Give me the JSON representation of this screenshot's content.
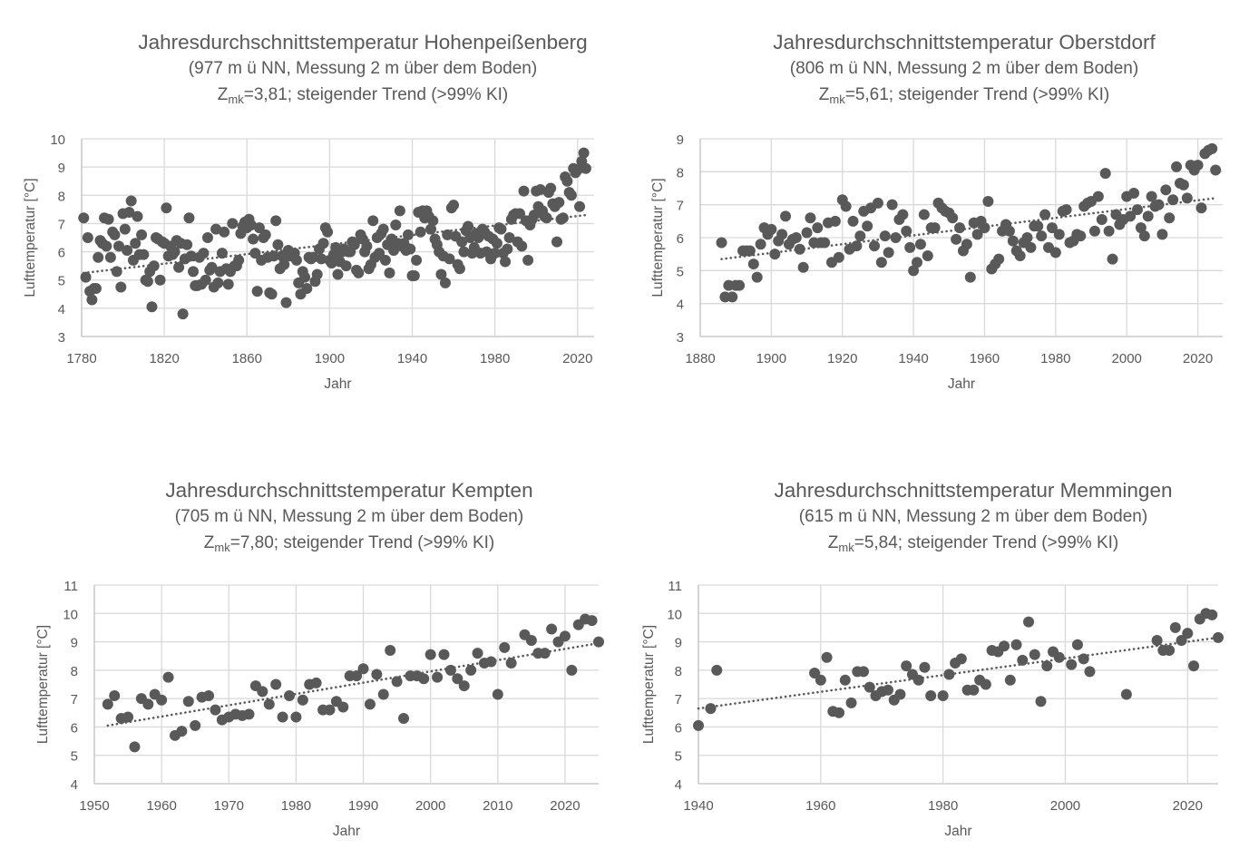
{
  "colors": {
    "marker": "#595959",
    "grid": "#d9d9d9",
    "axis": "#bfbfbf",
    "text": "#595959"
  },
  "chart_data": [
    {
      "type": "scatter",
      "title": "Jahresdurchschnittstemperatur Hohenpeißenberg",
      "subtitle": "(977 m ü NN, Messung 2 m über dem Boden)",
      "z_symbol": "Z",
      "z_sub": "mk",
      "z_rest": "=3,81; steigender Trend (>99% KI)",
      "xlabel": "Jahr",
      "ylabel": "Lufttemperatur [°C]",
      "xlim": [
        1780,
        2028
      ],
      "ylim": [
        3,
        10
      ],
      "xticks": [
        1780,
        1820,
        1860,
        1900,
        1940,
        1980,
        2020
      ],
      "yticks": [
        3,
        4,
        5,
        6,
        7,
        8,
        9,
        10
      ],
      "grid": true,
      "trend": {
        "type": "linear",
        "start": [
          1781,
          5.25
        ],
        "end": [
          2024,
          7.3
        ]
      },
      "year_start": 1781,
      "y": [
        7.2,
        5.1,
        6.5,
        4.6,
        4.3,
        4.7,
        4.7,
        5.8,
        6.4,
        6.3,
        7.2,
        6.2,
        7.15,
        5.8,
        6.7,
        6.6,
        5.3,
        6.2,
        4.75,
        7.35,
        6.8,
        6.05,
        7.4,
        7.8,
        5.7,
        6.3,
        7.25,
        5.9,
        6.6,
        5.9,
        5.0,
        4.95,
        5.3,
        4.05,
        5.5,
        6.5,
        6.45,
        5.0,
        6.35,
        6.3,
        7.55,
        5.85,
        6.2,
        5.9,
        6.0,
        6.4,
        5.45,
        6.3,
        3.8,
        5.75,
        6.25,
        7.2,
        5.85,
        5.3,
        4.8,
        4.8,
        5.8,
        4.85,
        5.95,
        5.0,
        6.5,
        5.35,
        5.45,
        4.75,
        6.8,
        4.9,
        5.3,
        5.95,
        6.7,
        5.4,
        4.85,
        5.3,
        7.0,
        5.5,
        5.5,
        5.7,
        6.65,
        6.9,
        7.05,
        6.85,
        7.15,
        6.95,
        6.45,
        5.95,
        4.6,
        6.85,
        5.7,
        6.5,
        6.6,
        5.8,
        4.55,
        4.5,
        5.85,
        7.1,
        6.25,
        5.4,
        5.85,
        5.55,
        4.2,
        6.05,
        5.85,
        5.9,
        5.95,
        5.7,
        4.9,
        4.5,
        5.3,
        5.1,
        4.7,
        5.8,
        5.75,
        5.8,
        4.95,
        5.2,
        6.1,
        5.75,
        6.3,
        6.85,
        6.7,
        5.7,
        5.6,
        5.9,
        6.15,
        5.2,
        5.65,
        6.0,
        6.1,
        5.5,
        6.0,
        6.0,
        6.35,
        6.25,
        5.35,
        5.25,
        6.6,
        6.45,
        6.0,
        6.2,
        5.4,
        5.55,
        7.1,
        5.8,
        6.5,
        5.95,
        6.65,
        6.8,
        5.7,
        6.25,
        5.25,
        6.45,
        6.05,
        6.95,
        6.3,
        7.45,
        6.2,
        6.3,
        6.05,
        6.6,
        6.1,
        5.15,
        5.15,
        5.7,
        7.4,
        6.7,
        7.45,
        7.2,
        7.45,
        7.25,
        6.8,
        7.1,
        6.45,
        6.25,
        6.0,
        5.2,
        5.85,
        4.9,
        6.6,
        5.75,
        7.55,
        7.65,
        6.55,
        5.55,
        5.4,
        6.35,
        6.0,
        6.75,
        6.9,
        6.5,
        5.95,
        6.15,
        6.65,
        6.5,
        5.95,
        6.8,
        6.7,
        6.0,
        6.55,
        5.75,
        6.45,
        5.95,
        6.3,
        6.85,
        6.8,
        5.95,
        5.65,
        6.1,
        6.5,
        7.15,
        7.3,
        7.35,
        6.35,
        7.35,
        6.2,
        8.15,
        7.1,
        5.7,
        6.95,
        7.15,
        7.3,
        8.15,
        7.6,
        8.2,
        7.45,
        7.25,
        7.2,
        8.1,
        8.25,
        7.7,
        7.6,
        6.35,
        7.75,
        7.15,
        7.2,
        8.65,
        8.5,
        8.1,
        8.0,
        8.95,
        8.8,
        8.9,
        7.6,
        9.2,
        9.5,
        8.95
      ]
    },
    {
      "type": "scatter",
      "title": "Jahresdurchschnittstemperatur Oberstdorf",
      "subtitle": "(806 m ü NN, Messung 2 m über dem Boden)",
      "z_symbol": "Z",
      "z_sub": "mk",
      "z_rest": "=5,61; steigender Trend (>99% KI)",
      "xlabel": "Jahr",
      "ylabel": "Lufttemperatur [°C]",
      "xlim": [
        1880,
        2027
      ],
      "ylim": [
        3,
        9
      ],
      "xticks": [
        1880,
        1900,
        1920,
        1940,
        1960,
        1980,
        2000,
        2020
      ],
      "yticks": [
        3,
        4,
        5,
        6,
        7,
        8,
        9
      ],
      "grid": true,
      "trend": {
        "type": "linear",
        "start": [
          1886,
          5.35
        ],
        "end": [
          2025,
          7.2
        ]
      },
      "year_start": 1886,
      "y": [
        5.85,
        4.2,
        4.55,
        4.2,
        4.55,
        4.55,
        5.6,
        5.6,
        5.6,
        5.2,
        4.8,
        5.8,
        6.3,
        6.1,
        6.25,
        5.5,
        5.9,
        6.1,
        6.65,
        5.8,
        5.95,
        6.0,
        5.65,
        5.1,
        6.15,
        6.6,
        5.85,
        6.3,
        5.85,
        5.85,
        6.45,
        5.25,
        6.5,
        5.4,
        7.15,
        6.95,
        5.65,
        6.5,
        5.75,
        6.05,
        6.8,
        6.35,
        6.9,
        5.75,
        7.05,
        5.25,
        6.05,
        5.55,
        7.0,
        6.0,
        6.55,
        6.7,
        6.2,
        5.7,
        5.0,
        5.25,
        5.8,
        6.7,
        5.45,
        6.3,
        6.3,
        7.05,
        6.9,
        6.8,
        6.75,
        6.6,
        5.95,
        6.3,
        5.6,
        5.8,
        4.8,
        6.45,
        6.1,
        6.5,
        6.3,
        7.1,
        5.05,
        5.2,
        5.35,
        6.2,
        6.4,
        6.2,
        5.9,
        5.6,
        5.45,
        5.85,
        6.0,
        5.7,
        6.35,
        6.35,
        6.05,
        6.7,
        5.7,
        6.3,
        5.55,
        6.1,
        6.8,
        6.85,
        5.85,
        5.9,
        6.1,
        6.05,
        6.95,
        7.05,
        7.1,
        6.2,
        7.25,
        6.55,
        7.95,
        6.2,
        5.35,
        6.7,
        6.4,
        6.55,
        7.25,
        6.65,
        7.35,
        6.85,
        6.3,
        6.05,
        6.65,
        7.25,
        6.95,
        7.0,
        6.1,
        7.45,
        6.6,
        7.15,
        8.15,
        7.65,
        7.6,
        7.2,
        8.2,
        8.05,
        8.2,
        6.9,
        8.55,
        8.65,
        8.7,
        8.05
      ]
    },
    {
      "type": "scatter",
      "title": "Jahresdurchschnittstemperatur Kempten",
      "subtitle": "(705 m ü NN, Messung 2 m über dem Boden)",
      "z_symbol": "Z",
      "z_sub": "mk",
      "z_rest": "=7,80; steigender Trend (>99% KI)",
      "xlabel": "Jahr",
      "ylabel": "Lufttemperatur [°C]",
      "xlim": [
        1950,
        2025
      ],
      "ylim": [
        4,
        11
      ],
      "xticks": [
        1950,
        1960,
        1970,
        1980,
        1990,
        2000,
        2010,
        2020
      ],
      "yticks": [
        4,
        5,
        6,
        7,
        8,
        9,
        10,
        11
      ],
      "grid": true,
      "trend": {
        "type": "linear",
        "start": [
          1952,
          6.05
        ],
        "end": [
          2025,
          8.95
        ]
      },
      "x": [
        1952,
        1953,
        1954,
        1955,
        1956,
        1957,
        1958,
        1959,
        1960,
        1961,
        1962,
        1963,
        1964,
        1965,
        1966,
        1967,
        1968,
        1969,
        1970,
        1971,
        1972,
        1973,
        1974,
        1975,
        1976,
        1977,
        1978,
        1979,
        1980,
        1981,
        1982,
        1983,
        1984,
        1985,
        1986,
        1987,
        1988,
        1989,
        1990,
        1991,
        1992,
        1993,
        1994,
        1995,
        1996,
        1997,
        1998,
        1999,
        2000,
        2001,
        2002,
        2003,
        2004,
        2005,
        2006,
        2007,
        2008,
        2009,
        2010,
        2011,
        2012,
        2014,
        2015,
        2016,
        2017,
        2018,
        2019,
        2020,
        2021,
        2022,
        2023,
        2024,
        2025
      ],
      "y": [
        6.8,
        7.1,
        6.3,
        6.35,
        5.3,
        7.0,
        6.8,
        7.15,
        6.95,
        7.75,
        5.7,
        5.85,
        6.9,
        6.05,
        7.05,
        7.1,
        6.6,
        6.25,
        6.35,
        6.45,
        6.4,
        6.45,
        7.45,
        7.25,
        6.8,
        7.5,
        6.35,
        7.1,
        6.35,
        6.95,
        7.5,
        7.55,
        6.6,
        6.6,
        6.9,
        6.7,
        7.8,
        7.8,
        8.05,
        6.8,
        7.85,
        7.15,
        8.7,
        7.6,
        6.3,
        7.8,
        7.8,
        7.7,
        8.55,
        7.75,
        8.55,
        8.0,
        7.7,
        7.45,
        8.0,
        8.6,
        8.25,
        8.3,
        7.15,
        8.8,
        8.25,
        9.25,
        9.05,
        8.6,
        8.6,
        9.45,
        9.0,
        9.2,
        8.0,
        9.6,
        9.8,
        9.75,
        9.0
      ]
    },
    {
      "type": "scatter",
      "title": "Jahresdurchschnittstemperatur Memmingen",
      "subtitle": "(615 m ü NN, Messung 2 m über dem Boden)",
      "z_symbol": "Z",
      "z_sub": "mk",
      "z_rest": "=5,84; steigender Trend (>99% KI)",
      "xlabel": "Jahr",
      "ylabel": "Lufttemperatur [°C]",
      "xlim": [
        1940,
        2025
      ],
      "ylim": [
        4,
        11
      ],
      "xticks": [
        1940,
        1960,
        1980,
        2000,
        2020
      ],
      "yticks": [
        4,
        5,
        6,
        7,
        8,
        9,
        10,
        11
      ],
      "grid": true,
      "trend": {
        "type": "linear",
        "start": [
          1940,
          6.65
        ],
        "end": [
          2025,
          9.15
        ]
      },
      "x": [
        1940,
        1942,
        1943,
        1959,
        1960,
        1961,
        1962,
        1963,
        1964,
        1965,
        1966,
        1967,
        1968,
        1969,
        1970,
        1971,
        1972,
        1973,
        1974,
        1975,
        1976,
        1977,
        1978,
        1980,
        1981,
        1982,
        1983,
        1984,
        1985,
        1986,
        1987,
        1988,
        1989,
        1990,
        1991,
        1992,
        1993,
        1994,
        1995,
        1996,
        1997,
        1998,
        1999,
        2001,
        2002,
        2003,
        2004,
        2010,
        2015,
        2016,
        2017,
        2018,
        2019,
        2020,
        2021,
        2022,
        2023,
        2024,
        2025
      ],
      "y": [
        6.05,
        6.65,
        8.0,
        7.9,
        7.65,
        8.45,
        6.55,
        6.5,
        7.65,
        6.85,
        7.95,
        7.95,
        7.4,
        7.1,
        7.25,
        7.3,
        6.95,
        7.15,
        8.15,
        7.85,
        7.65,
        8.1,
        7.1,
        7.1,
        7.85,
        8.25,
        8.4,
        7.3,
        7.3,
        7.65,
        7.5,
        8.7,
        8.65,
        8.85,
        7.65,
        8.9,
        8.35,
        9.7,
        8.55,
        6.9,
        8.15,
        8.65,
        8.45,
        8.2,
        8.9,
        8.4,
        7.95,
        7.15,
        9.05,
        8.7,
        8.7,
        9.5,
        9.05,
        9.3,
        8.15,
        9.8,
        10.0,
        9.95,
        9.15
      ]
    }
  ]
}
